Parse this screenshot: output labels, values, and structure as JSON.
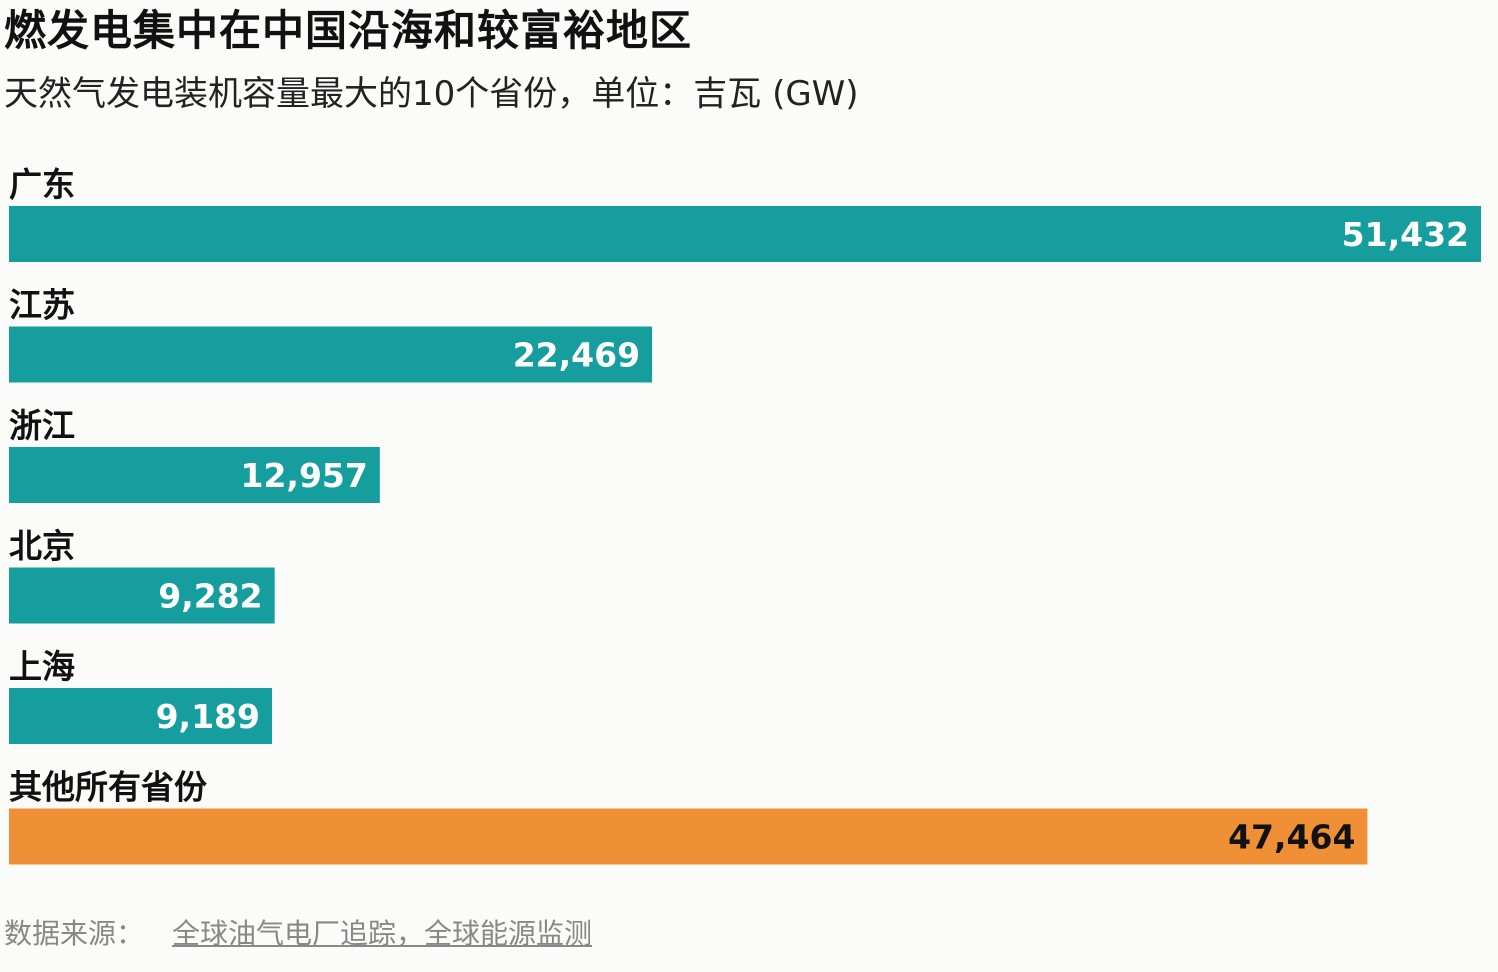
{
  "header": {
    "title": "燃发电集中在中国沿海和较富裕地区",
    "subtitle": "天然气发电装机容量最大的10个省份，单位：吉瓦 (GW)"
  },
  "chart_data": {
    "type": "bar",
    "orientation": "horizontal",
    "categories": [
      "广东",
      "江苏",
      "浙江",
      "北京",
      "上海",
      "其他所有省份"
    ],
    "values": [
      51432,
      22469,
      12957,
      9282,
      9189,
      47464
    ],
    "labels": [
      "51,432",
      "22,469",
      "12,957",
      "9,282",
      "9,189",
      "47,464"
    ],
    "colors": [
      "#169e9e",
      "#169e9e",
      "#169e9e",
      "#169e9e",
      "#169e9e",
      "#ef9036"
    ],
    "label_colors": [
      "#ffffff",
      "#ffffff",
      "#ffffff",
      "#ffffff",
      "#ffffff",
      "#111111"
    ],
    "xlim": [
      0,
      51432
    ],
    "grid": false,
    "legend": "none"
  },
  "footer": {
    "source_label": "数据来源：",
    "source_link": "全球油气电厂追踪，全球能源监测"
  }
}
